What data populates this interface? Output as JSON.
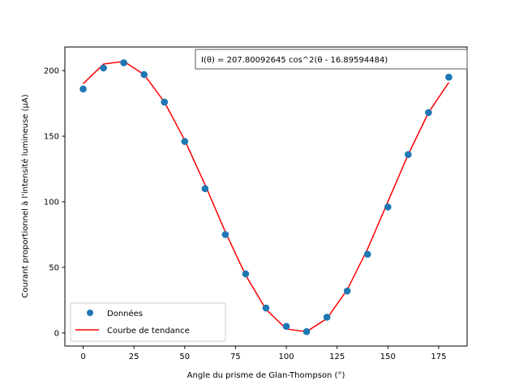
{
  "chart_data": {
    "type": "scatter",
    "annotation": "I(θ) = 207.80092645 cos^2(θ - 16.89594484)",
    "xlabel": "Angle du prisme de Glan-Thompson (°)",
    "ylabel": "Courant proportionnel à l'intensité lumineuse (μA)",
    "xlim": [
      -9,
      189
    ],
    "ylim": [
      -10,
      218
    ],
    "xticks": [
      0,
      25,
      50,
      75,
      100,
      125,
      150,
      175
    ],
    "yticks": [
      0,
      50,
      100,
      150,
      200
    ],
    "legend_position": "lower-left",
    "grid": false,
    "series": [
      {
        "name": "Données",
        "kind": "scatter",
        "color": "#1f77b4",
        "x": [
          0,
          10,
          20,
          30,
          40,
          50,
          60,
          70,
          80,
          90,
          100,
          110,
          120,
          130,
          140,
          150,
          160,
          170,
          180
        ],
        "y": [
          186,
          202,
          206,
          197,
          176,
          146,
          110,
          75,
          45,
          19,
          5,
          1,
          12,
          32,
          60,
          96,
          136,
          168,
          195
        ]
      },
      {
        "name": "Courbe de tendance",
        "kind": "line",
        "color": "#ff0000",
        "x": [
          0,
          10,
          20,
          30,
          40,
          50,
          60,
          70,
          80,
          90,
          100,
          110,
          120,
          130,
          140,
          150,
          160,
          170,
          180
        ],
        "y": [
          190,
          205,
          207,
          197,
          176,
          147,
          113,
          77,
          44,
          18,
          3,
          1,
          11,
          33,
          64,
          100,
          136,
          168,
          191
        ]
      }
    ]
  }
}
